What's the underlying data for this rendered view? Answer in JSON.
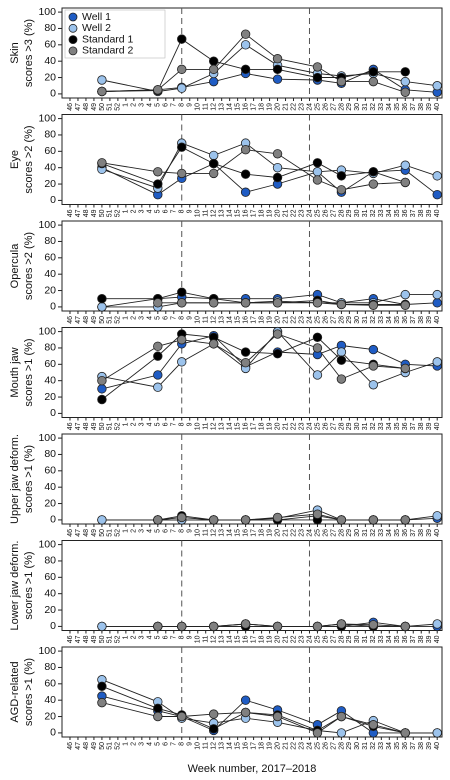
{
  "chart_data": [
    {
      "type": "line",
      "ylabel": [
        "Skin",
        "scores >3 (%)"
      ],
      "legend": "upper left",
      "categories": [
        "46",
        "47",
        "48",
        "49",
        "50",
        "51",
        "52",
        "1",
        "2",
        "3",
        "4",
        "5",
        "6",
        "7",
        "8",
        "9",
        "10",
        "11",
        "12",
        "13",
        "14",
        "15",
        "16",
        "17",
        "18",
        "19",
        "20",
        "21",
        "22",
        "23",
        "24",
        "25",
        "26",
        "27",
        "28",
        "29",
        "30",
        "31",
        "32",
        "33",
        "34",
        "35",
        "36",
        "37",
        "38",
        "39",
        "40"
      ],
      "x": [
        "50",
        "5",
        "8",
        "12",
        "16",
        "20",
        "25",
        "28",
        "32",
        "36",
        "40"
      ],
      "vlines": [
        "8",
        "24"
      ],
      "ylim": [
        -5,
        105
      ],
      "yticks": [
        0,
        20,
        40,
        60,
        80,
        100
      ],
      "series": [
        {
          "name": "Well 1",
          "color": "#1f5cc4",
          "values": [
            3,
            5,
            8,
            15,
            25,
            18,
            17,
            13,
            30,
            5,
            2
          ]
        },
        {
          "name": "Well 2",
          "color": "#9cc3ec",
          "values": [
            17,
            3,
            7,
            25,
            60,
            35,
            25,
            22,
            25,
            15,
            10
          ]
        },
        {
          "name": "Standard 1",
          "color": "#000000",
          "values": [
            3,
            4,
            67,
            40,
            30,
            30,
            20,
            20,
            27,
            27,
            null
          ]
        },
        {
          "name": "Standard 2",
          "color": "#808080",
          "values": [
            3,
            5,
            30,
            30,
            73,
            43,
            33,
            15,
            15,
            2,
            null
          ]
        }
      ]
    },
    {
      "type": "line",
      "ylabel": [
        "Eye",
        "scores >2 (%)"
      ],
      "categories": [
        "46",
        "47",
        "48",
        "49",
        "50",
        "51",
        "52",
        "1",
        "2",
        "3",
        "4",
        "5",
        "6",
        "7",
        "8",
        "9",
        "10",
        "11",
        "12",
        "13",
        "14",
        "15",
        "16",
        "17",
        "18",
        "19",
        "20",
        "21",
        "22",
        "23",
        "24",
        "25",
        "26",
        "27",
        "28",
        "29",
        "30",
        "31",
        "32",
        "33",
        "34",
        "35",
        "36",
        "37",
        "38",
        "39",
        "40"
      ],
      "x": [
        "50",
        "5",
        "8",
        "12",
        "16",
        "20",
        "25",
        "28",
        "32",
        "36",
        "40"
      ],
      "vlines": [
        "8",
        "24"
      ],
      "ylim": [
        -5,
        105
      ],
      "yticks": [
        0,
        20,
        40,
        60,
        80,
        100
      ],
      "series": [
        {
          "name": "Well 1",
          "color": "#1f5cc4",
          "values": [
            40,
            7,
            27,
            45,
            10,
            20,
            35,
            10,
            35,
            37,
            7
          ]
        },
        {
          "name": "Well 2",
          "color": "#9cc3ec",
          "values": [
            38,
            15,
            70,
            55,
            70,
            40,
            35,
            37,
            33,
            43,
            30
          ]
        },
        {
          "name": "Standard 1",
          "color": "#000000",
          "values": [
            45,
            20,
            65,
            45,
            32,
            28,
            46,
            30,
            35,
            22,
            null
          ]
        },
        {
          "name": "Standard 2",
          "color": "#808080",
          "values": [
            46,
            35,
            33,
            33,
            62,
            57,
            25,
            13,
            20,
            22,
            null
          ]
        }
      ]
    },
    {
      "type": "line",
      "ylabel": [
        "Opercula",
        "scores >2 (%)"
      ],
      "categories": [
        "46",
        "47",
        "48",
        "49",
        "50",
        "51",
        "52",
        "1",
        "2",
        "3",
        "4",
        "5",
        "6",
        "7",
        "8",
        "9",
        "10",
        "11",
        "12",
        "13",
        "14",
        "15",
        "16",
        "17",
        "18",
        "19",
        "20",
        "21",
        "22",
        "23",
        "24",
        "25",
        "26",
        "27",
        "28",
        "29",
        "30",
        "31",
        "32",
        "33",
        "34",
        "35",
        "36",
        "37",
        "38",
        "39",
        "40"
      ],
      "x": [
        "50",
        "5",
        "8",
        "12",
        "16",
        "20",
        "25",
        "28",
        "32",
        "36",
        "40"
      ],
      "vlines": [
        "8",
        "24"
      ],
      "ylim": [
        -5,
        105
      ],
      "yticks": [
        0,
        20,
        40,
        60,
        80,
        100
      ],
      "series": [
        {
          "name": "Well 1",
          "color": "#1f5cc4",
          "values": [
            0,
            10,
            12,
            10,
            10,
            10,
            15,
            5,
            10,
            3,
            5
          ]
        },
        {
          "name": "Well 2",
          "color": "#9cc3ec",
          "values": [
            0,
            0,
            5,
            5,
            5,
            7,
            5,
            5,
            5,
            15,
            15
          ]
        },
        {
          "name": "Standard 1",
          "color": "#000000",
          "values": [
            10,
            10,
            18,
            10,
            5,
            5,
            8,
            3,
            3,
            3,
            null
          ]
        },
        {
          "name": "Standard 2",
          "color": "#808080",
          "values": [
            null,
            5,
            5,
            5,
            5,
            5,
            5,
            3,
            2,
            2,
            null
          ]
        }
      ]
    },
    {
      "type": "line",
      "ylabel": [
        "Mouth jaw",
        "scores >1 (%)"
      ],
      "categories": [
        "46",
        "47",
        "48",
        "49",
        "50",
        "51",
        "52",
        "1",
        "2",
        "3",
        "4",
        "5",
        "6",
        "7",
        "8",
        "9",
        "10",
        "11",
        "12",
        "13",
        "14",
        "15",
        "16",
        "17",
        "18",
        "19",
        "20",
        "21",
        "22",
        "23",
        "24",
        "25",
        "26",
        "27",
        "28",
        "29",
        "30",
        "31",
        "32",
        "33",
        "34",
        "35",
        "36",
        "37",
        "38",
        "39",
        "40"
      ],
      "x": [
        "50",
        "5",
        "8",
        "12",
        "16",
        "20",
        "25",
        "28",
        "32",
        "36",
        "40"
      ],
      "vlines": [
        "8",
        "24"
      ],
      "ylim": [
        -5,
        105
      ],
      "yticks": [
        0,
        20,
        40,
        60,
        80,
        100
      ],
      "series": [
        {
          "name": "Well 1",
          "color": "#1f5cc4",
          "values": [
            30,
            47,
            85,
            95,
            57,
            75,
            72,
            83,
            78,
            60,
            58
          ]
        },
        {
          "name": "Well 2",
          "color": "#9cc3ec",
          "values": [
            45,
            32,
            63,
            85,
            55,
            100,
            47,
            75,
            35,
            50,
            63
          ]
        },
        {
          "name": "Standard 1",
          "color": "#000000",
          "values": [
            17,
            70,
            97,
            93,
            75,
            73,
            93,
            65,
            60,
            55,
            null
          ]
        },
        {
          "name": "Standard 2",
          "color": "#808080",
          "values": [
            40,
            82,
            90,
            85,
            62,
            97,
            80,
            42,
            58,
            55,
            null
          ]
        }
      ]
    },
    {
      "type": "line",
      "ylabel": [
        "Upper jaw deform.",
        "scores >1 (%)"
      ],
      "categories": [
        "46",
        "47",
        "48",
        "49",
        "50",
        "51",
        "52",
        "1",
        "2",
        "3",
        "4",
        "5",
        "6",
        "7",
        "8",
        "9",
        "10",
        "11",
        "12",
        "13",
        "14",
        "15",
        "16",
        "17",
        "18",
        "19",
        "20",
        "21",
        "22",
        "23",
        "24",
        "25",
        "26",
        "27",
        "28",
        "29",
        "30",
        "31",
        "32",
        "33",
        "34",
        "35",
        "36",
        "37",
        "38",
        "39",
        "40"
      ],
      "x": [
        "50",
        "5",
        "8",
        "12",
        "16",
        "20",
        "25",
        "28",
        "32",
        "36",
        "40"
      ],
      "vlines": [
        "8",
        "24"
      ],
      "ylim": [
        -5,
        105
      ],
      "yticks": [
        0,
        20,
        40,
        60,
        80,
        100
      ],
      "series": [
        {
          "name": "Well 1",
          "color": "#1f5cc4",
          "values": [
            0,
            0,
            0,
            0,
            0,
            0,
            5,
            0,
            0,
            0,
            2
          ]
        },
        {
          "name": "Well 2",
          "color": "#9cc3ec",
          "values": [
            0,
            0,
            0,
            0,
            0,
            2,
            12,
            0,
            0,
            0,
            5
          ]
        },
        {
          "name": "Standard 1",
          "color": "#000000",
          "values": [
            null,
            0,
            5,
            0,
            0,
            0,
            0,
            0,
            0,
            0,
            null
          ]
        },
        {
          "name": "Standard 2",
          "color": "#808080",
          "values": [
            null,
            0,
            3,
            0,
            0,
            3,
            7,
            0,
            0,
            0,
            null
          ]
        }
      ]
    },
    {
      "type": "line",
      "ylabel": [
        "Lower jaw deform.",
        "scores >1 (%)"
      ],
      "categories": [
        "46",
        "47",
        "48",
        "49",
        "50",
        "51",
        "52",
        "1",
        "2",
        "3",
        "4",
        "5",
        "6",
        "7",
        "8",
        "9",
        "10",
        "11",
        "12",
        "13",
        "14",
        "15",
        "16",
        "17",
        "18",
        "19",
        "20",
        "21",
        "22",
        "23",
        "24",
        "25",
        "26",
        "27",
        "28",
        "29",
        "30",
        "31",
        "32",
        "33",
        "34",
        "35",
        "36",
        "37",
        "38",
        "39",
        "40"
      ],
      "x": [
        "50",
        "5",
        "8",
        "12",
        "16",
        "20",
        "25",
        "28",
        "32",
        "36",
        "40"
      ],
      "vlines": [
        "8",
        "24"
      ],
      "ylim": [
        -5,
        105
      ],
      "yticks": [
        0,
        20,
        40,
        60,
        80,
        100
      ],
      "series": [
        {
          "name": "Well 1",
          "color": "#1f5cc4",
          "values": [
            0,
            0,
            0,
            0,
            0,
            0,
            0,
            0,
            5,
            0,
            0
          ]
        },
        {
          "name": "Well 2",
          "color": "#9cc3ec",
          "values": [
            0,
            0,
            0,
            0,
            3,
            0,
            0,
            3,
            0,
            0,
            3
          ]
        },
        {
          "name": "Standard 1",
          "color": "#000000",
          "values": [
            null,
            0,
            0,
            0,
            0,
            0,
            0,
            0,
            0,
            0,
            null
          ]
        },
        {
          "name": "Standard 2",
          "color": "#808080",
          "values": [
            null,
            0,
            0,
            0,
            3,
            0,
            0,
            3,
            2,
            0,
            null
          ]
        }
      ]
    },
    {
      "type": "line",
      "ylabel": [
        "AGD-related",
        "scores >1 (%)"
      ],
      "xlabel": "Week number, 2017–2018",
      "categories": [
        "46",
        "47",
        "48",
        "49",
        "50",
        "51",
        "52",
        "1",
        "2",
        "3",
        "4",
        "5",
        "6",
        "7",
        "8",
        "9",
        "10",
        "11",
        "12",
        "13",
        "14",
        "15",
        "16",
        "17",
        "18",
        "19",
        "20",
        "21",
        "22",
        "23",
        "24",
        "25",
        "26",
        "27",
        "28",
        "29",
        "30",
        "31",
        "32",
        "33",
        "34",
        "35",
        "36",
        "37",
        "38",
        "39",
        "40"
      ],
      "x": [
        "50",
        "5",
        "8",
        "12",
        "16",
        "20",
        "25",
        "28",
        "32",
        "36",
        "40"
      ],
      "vlines": [
        "8",
        "24"
      ],
      "ylim": [
        -5,
        105
      ],
      "yticks": [
        0,
        20,
        40,
        60,
        80,
        100
      ],
      "series": [
        {
          "name": "Well 1",
          "color": "#1f5cc4",
          "values": [
            45,
            27,
            20,
            3,
            40,
            28,
            10,
            27,
            0,
            0,
            0
          ]
        },
        {
          "name": "Well 2",
          "color": "#9cc3ec",
          "values": [
            65,
            38,
            18,
            12,
            18,
            13,
            3,
            0,
            15,
            0,
            0
          ]
        },
        {
          "name": "Standard 1",
          "color": "#000000",
          "values": [
            57,
            30,
            22,
            5,
            25,
            22,
            3,
            20,
            8,
            0,
            null
          ]
        },
        {
          "name": "Standard 2",
          "color": "#808080",
          "values": [
            37,
            20,
            20,
            23,
            25,
            20,
            0,
            20,
            10,
            0,
            null
          ]
        }
      ]
    }
  ]
}
